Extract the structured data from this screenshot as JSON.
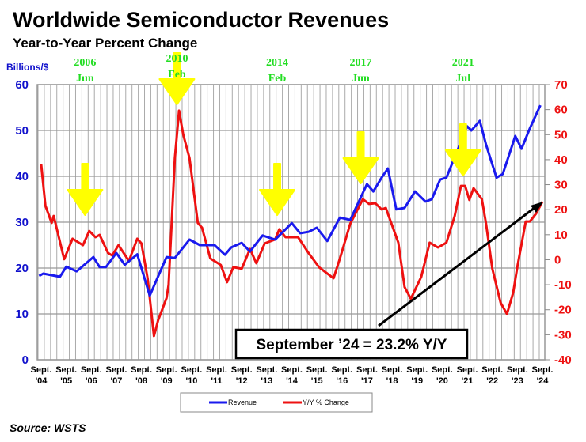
{
  "chart_data": {
    "type": "line",
    "title": "Worldwide Semiconductor Revenues",
    "subtitle": "Year-to-Year Percent Change",
    "ylabel_left": "Billions/$",
    "y_left_lim": [
      0,
      60
    ],
    "y_left_ticks": [
      "0",
      "10",
      "20",
      "30",
      "40",
      "50",
      "60"
    ],
    "y_right_lim": [
      -40,
      70
    ],
    "y_right_ticks": [
      "-40",
      "-30",
      "-20",
      "-10",
      "0",
      "10",
      "20",
      "30",
      "40",
      "50",
      "60",
      "70"
    ],
    "x_ticks": [
      [
        "Sept.",
        "'04"
      ],
      [
        "Sept.",
        "'05"
      ],
      [
        "Sept.",
        "'06"
      ],
      [
        "Sept.",
        "'07"
      ],
      [
        "Sept.",
        "'08"
      ],
      [
        "Sept.",
        "'09"
      ],
      [
        "Sept.",
        "'10"
      ],
      [
        "Sept.",
        "'11"
      ],
      [
        "Sept.",
        "'12"
      ],
      [
        "Sept.",
        "'13"
      ],
      [
        "Sept.",
        "'14"
      ],
      [
        "Sept.",
        "'15"
      ],
      [
        "Sept.",
        "'16"
      ],
      [
        "Sept.",
        "'17"
      ],
      [
        "Sept.",
        "'18"
      ],
      [
        "Sept.",
        "'19"
      ],
      [
        "Sept.",
        "'20"
      ],
      [
        "Sept.",
        "'21"
      ],
      [
        "Sept.",
        "'22"
      ],
      [
        "Sept.",
        "'23"
      ],
      [
        "Sept.",
        "'24"
      ]
    ],
    "grid": true,
    "legend_placement": "bottom-center",
    "series": [
      {
        "name": "Revenue",
        "axis": "left",
        "color": "#1a1aee",
        "points": [
          [
            "2004-08",
            18.3
          ],
          [
            "2004-10",
            18.8
          ],
          [
            "2005-06",
            18.1
          ],
          [
            "2005-09",
            20.3
          ],
          [
            "2006-02",
            19.3
          ],
          [
            "2006-10",
            22.4
          ],
          [
            "2007-01",
            20.2
          ],
          [
            "2007-04",
            20.2
          ],
          [
            "2007-09",
            23.3
          ],
          [
            "2008-01",
            20.7
          ],
          [
            "2008-07",
            23.0
          ],
          [
            "2009-01",
            14.0
          ],
          [
            "2009-09",
            22.4
          ],
          [
            "2010-01",
            22.2
          ],
          [
            "2010-08",
            26.2
          ],
          [
            "2011-01",
            25.0
          ],
          [
            "2011-08",
            25.0
          ],
          [
            "2012-01",
            22.9
          ],
          [
            "2012-04",
            24.5
          ],
          [
            "2012-09",
            25.5
          ],
          [
            "2013-01",
            23.6
          ],
          [
            "2013-07",
            27.1
          ],
          [
            "2014-01",
            26.2
          ],
          [
            "2014-09",
            29.8
          ],
          [
            "2015-01",
            27.6
          ],
          [
            "2015-05",
            27.9
          ],
          [
            "2015-09",
            28.8
          ],
          [
            "2016-02",
            25.9
          ],
          [
            "2016-08",
            31.0
          ],
          [
            "2017-01",
            30.5
          ],
          [
            "2017-09",
            38.3
          ],
          [
            "2017-12",
            36.7
          ],
          [
            "2018-04",
            39.7
          ],
          [
            "2018-07",
            41.7
          ],
          [
            "2018-11",
            32.8
          ],
          [
            "2019-03",
            33.1
          ],
          [
            "2019-08",
            36.7
          ],
          [
            "2020-01",
            34.5
          ],
          [
            "2020-04",
            35.0
          ],
          [
            "2020-08",
            39.3
          ],
          [
            "2020-11",
            39.7
          ],
          [
            "2021-09",
            50.9
          ],
          [
            "2021-11",
            50.0
          ],
          [
            "2022-03",
            52.1
          ],
          [
            "2022-06",
            46.9
          ],
          [
            "2022-11",
            39.7
          ],
          [
            "2023-02",
            40.5
          ],
          [
            "2023-08",
            48.8
          ],
          [
            "2023-11",
            46.0
          ],
          [
            "2024-03",
            50.5
          ],
          [
            "2024-08",
            55.5
          ]
        ]
      },
      {
        "name": "Y/Y % Change",
        "axis": "right",
        "color": "#ee1111",
        "points": [
          [
            "2004-09",
            38.1
          ],
          [
            "2004-11",
            21.6
          ],
          [
            "2005-02",
            14.7
          ],
          [
            "2005-03",
            17.5
          ],
          [
            "2005-08",
            0.2
          ],
          [
            "2005-12",
            8.4
          ],
          [
            "2006-05",
            5.8
          ],
          [
            "2006-08",
            11.5
          ],
          [
            "2006-11",
            9.0
          ],
          [
            "2007-01",
            9.9
          ],
          [
            "2007-05",
            2.7
          ],
          [
            "2007-07",
            1.7
          ],
          [
            "2007-10",
            5.8
          ],
          [
            "2008-03",
            -0.5
          ],
          [
            "2008-07",
            8.4
          ],
          [
            "2008-09",
            6.5
          ],
          [
            "2008-12",
            -7.7
          ],
          [
            "2009-03",
            -30.5
          ],
          [
            "2009-05",
            -24.2
          ],
          [
            "2009-09",
            -15.3
          ],
          [
            "2009-10",
            -10.0
          ],
          [
            "2010-01",
            40.6
          ],
          [
            "2010-03",
            59.6
          ],
          [
            "2010-05",
            50.1
          ],
          [
            "2010-08",
            40.6
          ],
          [
            "2010-12",
            14.7
          ],
          [
            "2011-02",
            12.8
          ],
          [
            "2011-06",
            0.5
          ],
          [
            "2011-11",
            -2.1
          ],
          [
            "2012-02",
            -9.0
          ],
          [
            "2012-05",
            -3.0
          ],
          [
            "2012-09",
            -3.6
          ],
          [
            "2013-01",
            4.3
          ],
          [
            "2013-04",
            -1.4
          ],
          [
            "2013-08",
            6.5
          ],
          [
            "2014-01",
            8.1
          ],
          [
            "2014-03",
            12.2
          ],
          [
            "2014-06",
            9.0
          ],
          [
            "2014-12",
            9.0
          ],
          [
            "2015-05",
            2.7
          ],
          [
            "2015-10",
            -3.0
          ],
          [
            "2016-05",
            -7.4
          ],
          [
            "2016-08",
            0.5
          ],
          [
            "2017-01",
            14.4
          ],
          [
            "2017-07",
            24.2
          ],
          [
            "2017-10",
            22.3
          ],
          [
            "2018-01",
            22.6
          ],
          [
            "2018-04",
            20.1
          ],
          [
            "2018-06",
            20.7
          ],
          [
            "2018-12",
            6.8
          ],
          [
            "2019-03",
            -10.9
          ],
          [
            "2019-06",
            -15.6
          ],
          [
            "2019-11",
            -6.8
          ],
          [
            "2020-03",
            6.8
          ],
          [
            "2020-07",
            4.9
          ],
          [
            "2020-11",
            6.8
          ],
          [
            "2021-03",
            17.5
          ],
          [
            "2021-06",
            29.5
          ],
          [
            "2021-08",
            29.5
          ],
          [
            "2021-10",
            23.9
          ],
          [
            "2021-12",
            28.6
          ],
          [
            "2022-04",
            24.2
          ],
          [
            "2022-06",
            14.4
          ],
          [
            "2022-09",
            -3.6
          ],
          [
            "2023-01",
            -17.2
          ],
          [
            "2023-04",
            -21.7
          ],
          [
            "2023-07",
            -13.1
          ],
          [
            "2023-09",
            -2.7
          ],
          [
            "2024-01",
            15.3
          ],
          [
            "2024-03",
            15.3
          ],
          [
            "2024-06",
            18.5
          ],
          [
            "2024-09",
            23.2
          ]
        ]
      }
    ],
    "annotations": [
      {
        "year": "2006",
        "month": "Jun",
        "date": "2006-06",
        "color": "#ffff00"
      },
      {
        "year": "2010",
        "month": "Feb",
        "date": "2010-02",
        "color": "#ffff00"
      },
      {
        "year": "2014",
        "month": "Feb",
        "date": "2014-02",
        "color": "#ffff00"
      },
      {
        "year": "2017",
        "month": "Jun",
        "date": "2017-06",
        "color": "#ffff00"
      },
      {
        "year": "2021",
        "month": "Jul",
        "date": "2021-07",
        "color": "#ffff00"
      }
    ],
    "callout": "September ’24 = 23.2% Y/Y",
    "source": "Source: WSTS"
  }
}
